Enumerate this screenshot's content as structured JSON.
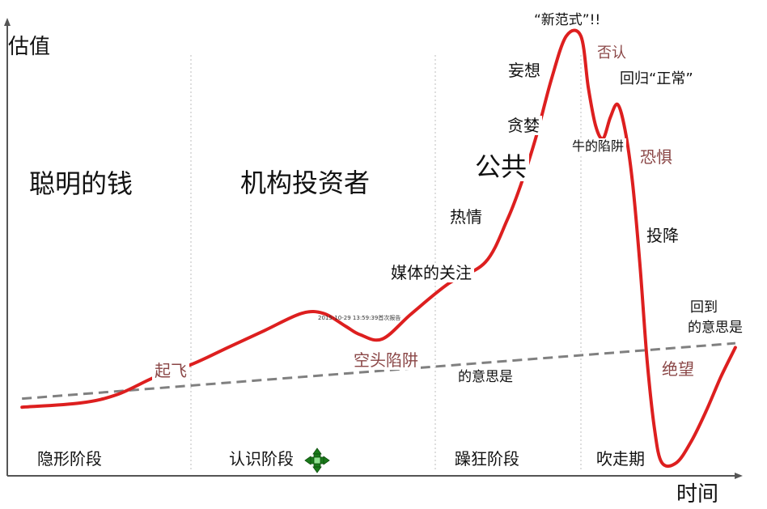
{
  "axes": {
    "y_label": "估值",
    "x_label": "时间"
  },
  "phases": {
    "top": [
      "聪明的钱",
      "机构投资者",
      "公共"
    ],
    "bottom": [
      "隐形阶段",
      "认识阶段",
      "躁狂阶段",
      "吹走期"
    ]
  },
  "annotations": {
    "takeoff": "起飞",
    "bear_trap": "空头陷阱",
    "media": "媒体的关注",
    "enthusiasm": "热情",
    "greed": "贪婪",
    "delusion": "妄想",
    "new_paradigm": "“新范式”!!",
    "denial": "否认",
    "return_normal": "回归“正常”",
    "bull_trap": "牛的陷阱",
    "fear": "恐惧",
    "capitulation": "投降",
    "despair": "绝望",
    "return_mean_1": "回到",
    "return_mean_2": "的意思是",
    "mean_mid": "的意思是",
    "timestamp": "2015-10-29 13:59:39首次报告"
  },
  "icons": {
    "move": "move-arrows-icon"
  },
  "colors": {
    "curve": "#dd1f1f",
    "trend": "#808080",
    "divider": "#c8c8c8",
    "axis": "#555555"
  },
  "chart_data": {
    "type": "line",
    "title": "",
    "xlabel": "时间",
    "ylabel": "估值",
    "xlim": [
      0,
      100
    ],
    "ylim": [
      0,
      100
    ],
    "grid": false,
    "series": [
      {
        "values": [
          [
            2,
            14
          ],
          [
            10,
            15
          ],
          [
            15,
            17
          ],
          [
            20,
            21
          ],
          [
            25,
            24
          ],
          [
            30,
            28
          ],
          [
            35,
            32
          ],
          [
            40,
            36
          ],
          [
            43,
            36
          ],
          [
            46,
            33
          ],
          [
            48,
            31
          ],
          [
            51,
            30
          ],
          [
            55,
            36
          ],
          [
            60,
            43
          ],
          [
            65,
            48
          ],
          [
            68,
            58
          ],
          [
            70,
            67
          ],
          [
            72,
            78
          ],
          [
            74,
            91
          ],
          [
            76,
            101
          ],
          [
            78,
            101
          ],
          [
            79,
            89
          ],
          [
            80,
            80
          ],
          [
            81,
            77
          ],
          [
            82,
            82
          ],
          [
            83,
            85
          ],
          [
            84,
            79
          ],
          [
            85,
            67
          ],
          [
            86,
            48
          ],
          [
            87,
            25
          ],
          [
            88,
            9
          ],
          [
            89,
            1
          ],
          [
            91,
            1
          ],
          [
            93,
            6
          ],
          [
            95,
            13
          ],
          [
            97,
            21
          ],
          [
            99,
            28
          ]
        ]
      },
      {
        "style": "dashed",
        "values": [
          [
            2,
            16
          ],
          [
            99,
            29
          ]
        ]
      }
    ]
  }
}
